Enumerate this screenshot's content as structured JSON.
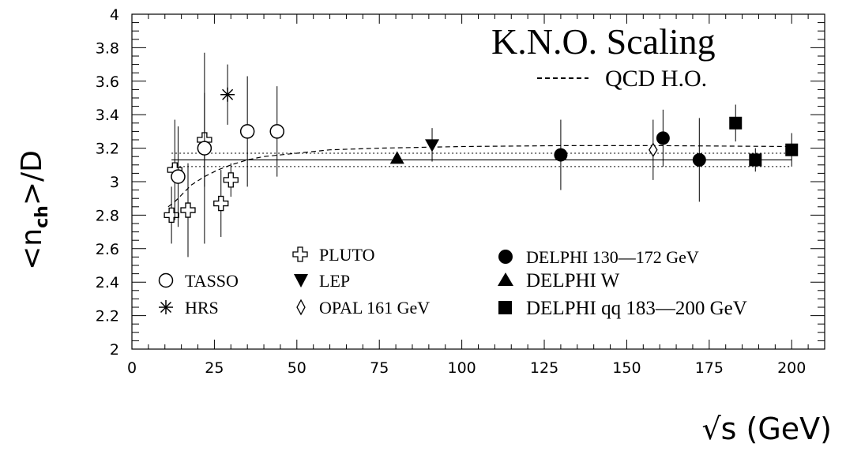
{
  "chart_data": {
    "type": "scatter",
    "title": "K.N.O. Scaling",
    "ylabel": "<n_ch>/D",
    "xlabel": "√s (GeV)",
    "xlim": [
      0,
      210
    ],
    "ylim": [
      2,
      4
    ],
    "x_ticks": [
      0,
      25,
      50,
      75,
      100,
      125,
      150,
      175,
      200
    ],
    "y_ticks": [
      2,
      2.2,
      2.4,
      2.6,
      2.8,
      3,
      3.2,
      3.4,
      3.6,
      3.8,
      4
    ],
    "y_tick_labels": [
      "2",
      "2.2",
      "2.4",
      "2.6",
      "2.8",
      "3",
      "3.2",
      "3.4",
      "3.6",
      "3.8",
      "4"
    ],
    "grid": false,
    "fit_line": {
      "value": 3.13,
      "band": [
        3.09,
        3.17
      ]
    },
    "qcd_curve": {
      "name": "QCD H.O.",
      "points": [
        [
          11,
          2.85
        ],
        [
          13,
          2.88
        ],
        [
          15,
          2.92
        ],
        [
          18,
          2.98
        ],
        [
          22,
          3.03
        ],
        [
          26,
          3.07
        ],
        [
          30,
          3.1
        ],
        [
          35,
          3.13
        ],
        [
          40,
          3.15
        ],
        [
          50,
          3.17
        ],
        [
          60,
          3.19
        ],
        [
          75,
          3.2
        ],
        [
          100,
          3.21
        ],
        [
          130,
          3.215
        ],
        [
          160,
          3.215
        ],
        [
          200,
          3.21
        ]
      ]
    },
    "series": [
      {
        "name": "PLUTO",
        "marker": "open-cross",
        "points": [
          {
            "x": 12,
            "y": 2.8,
            "err": 0.17
          },
          {
            "x": 13,
            "y": 3.07,
            "err": 0.3
          },
          {
            "x": 17,
            "y": 2.83,
            "err": 0.28
          },
          {
            "x": 22,
            "y": 3.25,
            "err": 0.28
          },
          {
            "x": 27,
            "y": 2.87,
            "err": 0.2
          },
          {
            "x": 30,
            "y": 3.01,
            "err": 0.1
          }
        ]
      },
      {
        "name": "TASSO",
        "marker": "open-circle",
        "points": [
          {
            "x": 14,
            "y": 3.03,
            "err": 0.3
          },
          {
            "x": 22,
            "y": 3.2,
            "err": 0.57
          },
          {
            "x": 35,
            "y": 3.3,
            "err": 0.33
          },
          {
            "x": 44,
            "y": 3.3,
            "err": 0.27
          }
        ]
      },
      {
        "name": "HRS",
        "marker": "asterisk",
        "points": [
          {
            "x": 29,
            "y": 3.52,
            "err": 0.18
          }
        ]
      },
      {
        "name": "LEP",
        "marker": "filled-triangle-down",
        "points": [
          {
            "x": 91,
            "y": 3.22,
            "err": 0.1
          }
        ]
      },
      {
        "name": "OPAL 161 GeV",
        "marker": "open-diamond",
        "points": [
          {
            "x": 158,
            "y": 3.19,
            "err": 0.18
          }
        ]
      },
      {
        "name": "DELPHI 130—172 GeV",
        "marker": "filled-circle",
        "points": [
          {
            "x": 130,
            "y": 3.16,
            "err": 0.21
          },
          {
            "x": 161,
            "y": 3.26,
            "err": 0.17
          },
          {
            "x": 172,
            "y": 3.13,
            "err": 0.25
          }
        ]
      },
      {
        "name": "DELPHI W",
        "marker": "filled-triangle-up",
        "points": [
          {
            "x": 80.4,
            "y": 3.14,
            "err": 0.03
          }
        ]
      },
      {
        "name": "DELPHI qq 183—200 GeV",
        "marker": "filled-square",
        "points": [
          {
            "x": 183,
            "y": 3.35,
            "err": 0.11
          },
          {
            "x": 189,
            "y": 3.13,
            "err": 0.07
          },
          {
            "x": 200,
            "y": 3.19,
            "err": 0.1
          }
        ]
      }
    ]
  },
  "title": "K.N.O. Scaling",
  "curve_label": "QCD H.O.",
  "ylabel": {
    "lt": "<",
    "n": "n",
    "sub": "ch",
    "gt": ">",
    "d": "/D"
  },
  "xlabel": "√s (GeV)",
  "legend": {
    "tasso": "TASSO",
    "hrs": "HRS",
    "pluto": "PLUTO",
    "lep": "LEP",
    "opal": "OPAL 161 GeV",
    "delphi1": "DELPHI 130—172 GeV",
    "delphiw": "DELPHI W",
    "delphiqq": "DELPHI qq 183—200 GeV"
  }
}
